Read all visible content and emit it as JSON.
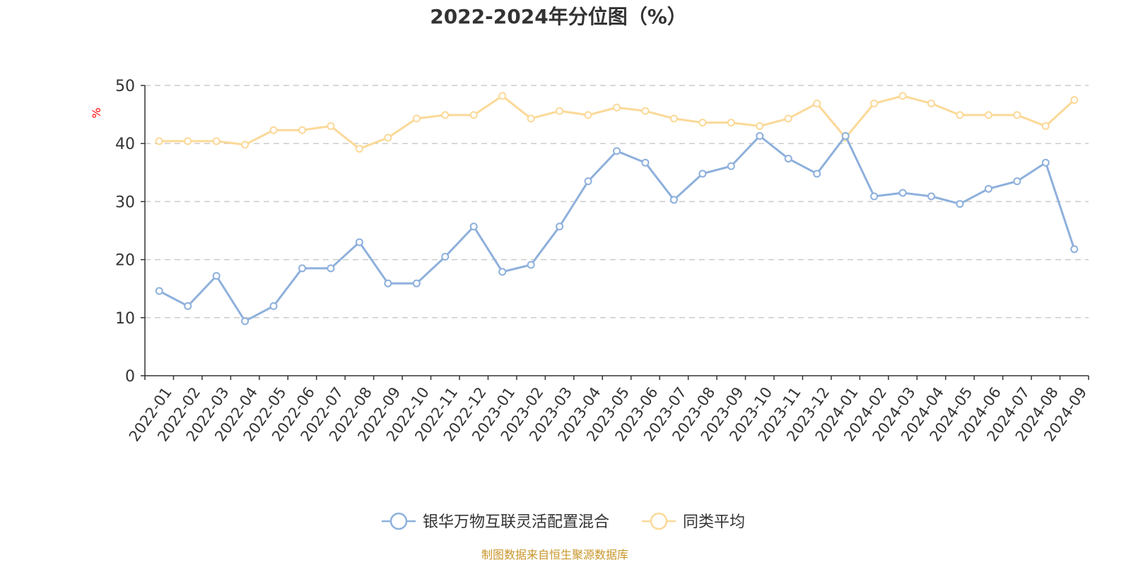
{
  "chart_data": {
    "type": "line",
    "title": "2022-2024年分位图（%）",
    "ylabel": "%",
    "ylim": [
      0,
      50
    ],
    "yticks": [
      0,
      10,
      20,
      30,
      40,
      50
    ],
    "grid": true,
    "legend_position": "bottom",
    "categories": [
      "2022-01",
      "2022-02",
      "2022-03",
      "2022-04",
      "2022-05",
      "2022-06",
      "2022-07",
      "2022-08",
      "2022-09",
      "2022-10",
      "2022-11",
      "2022-12",
      "2023-01",
      "2023-02",
      "2023-03",
      "2023-04",
      "2023-05",
      "2023-06",
      "2023-07",
      "2023-08",
      "2023-09",
      "2023-10",
      "2023-11",
      "2023-12",
      "2024-01",
      "2024-02",
      "2024-03",
      "2024-04",
      "2024-05",
      "2024-06",
      "2024-07",
      "2024-08",
      "2024-09"
    ],
    "series": [
      {
        "name": "银华万物互联灵活配置混合",
        "color": "#8eb0dc",
        "values": [
          14.6,
          12.0,
          17.2,
          9.4,
          12.0,
          18.5,
          18.5,
          23.0,
          15.9,
          15.9,
          20.5,
          25.7,
          17.9,
          19.1,
          25.7,
          33.5,
          38.7,
          36.7,
          30.3,
          34.8,
          36.1,
          41.3,
          37.4,
          34.8,
          41.3,
          30.9,
          31.5,
          30.9,
          29.6,
          32.2,
          33.5,
          36.7,
          21.8
        ]
      },
      {
        "name": "同类平均",
        "color": "#fbd998",
        "values": [
          40.4,
          40.4,
          40.4,
          39.8,
          42.3,
          42.3,
          43.0,
          39.1,
          41.0,
          44.3,
          44.9,
          44.9,
          48.2,
          44.3,
          45.6,
          44.9,
          46.2,
          45.6,
          44.3,
          43.6,
          43.6,
          43.0,
          44.3,
          46.9,
          41.0,
          46.9,
          48.2,
          46.9,
          44.9,
          44.9,
          44.9,
          43.0,
          47.5
        ]
      }
    ]
  },
  "source_text": "制图数据来自恒生聚源数据库",
  "colors": {
    "axis": "#333333",
    "grid": "#cccccc",
    "ylabel": "#ff0000",
    "source": "#c8962a"
  }
}
